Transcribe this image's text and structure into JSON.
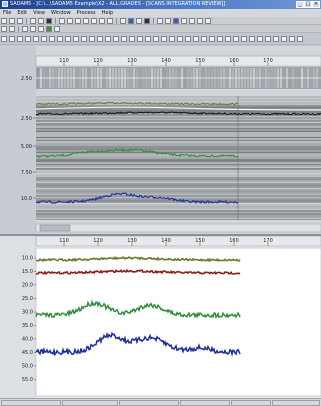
{
  "window": {
    "title": "SADAM5 - [C:\\...\\SADAM5 Example\\X2 - ALL.GRADES - [SCANS INTEGRATION REVIEW]]",
    "buttons": {
      "minimize": "_",
      "maximize": "□",
      "close": "×"
    }
  },
  "menu": [
    "File",
    "Edit",
    "View",
    "Window",
    "Process",
    "Help"
  ],
  "upper_panel": {
    "x_ticks": [
      "110",
      "120",
      "130",
      "140",
      "150",
      "160",
      "170"
    ],
    "top_strip_ticks": [
      "2.50"
    ],
    "main_ticks": [
      "2.50",
      "5.00",
      "7.50",
      "10.0"
    ]
  },
  "lower_panel": {
    "x_ticks": [
      "110",
      "120",
      "130",
      "140",
      "150",
      "160",
      "170"
    ],
    "y_ticks": [
      "10.0",
      "15.0",
      "20.0",
      "25.0",
      "30.0",
      "35.0",
      "40.0",
      "45.0",
      "50.0",
      "55.0"
    ]
  },
  "colors": {
    "olive": "#6f7a2e",
    "red": "#8a1e1e",
    "green": "#2f8f3e",
    "blue": "#1f2f9a",
    "dark": "#1a1a1a",
    "titlebar": "#1f3f8c"
  }
}
